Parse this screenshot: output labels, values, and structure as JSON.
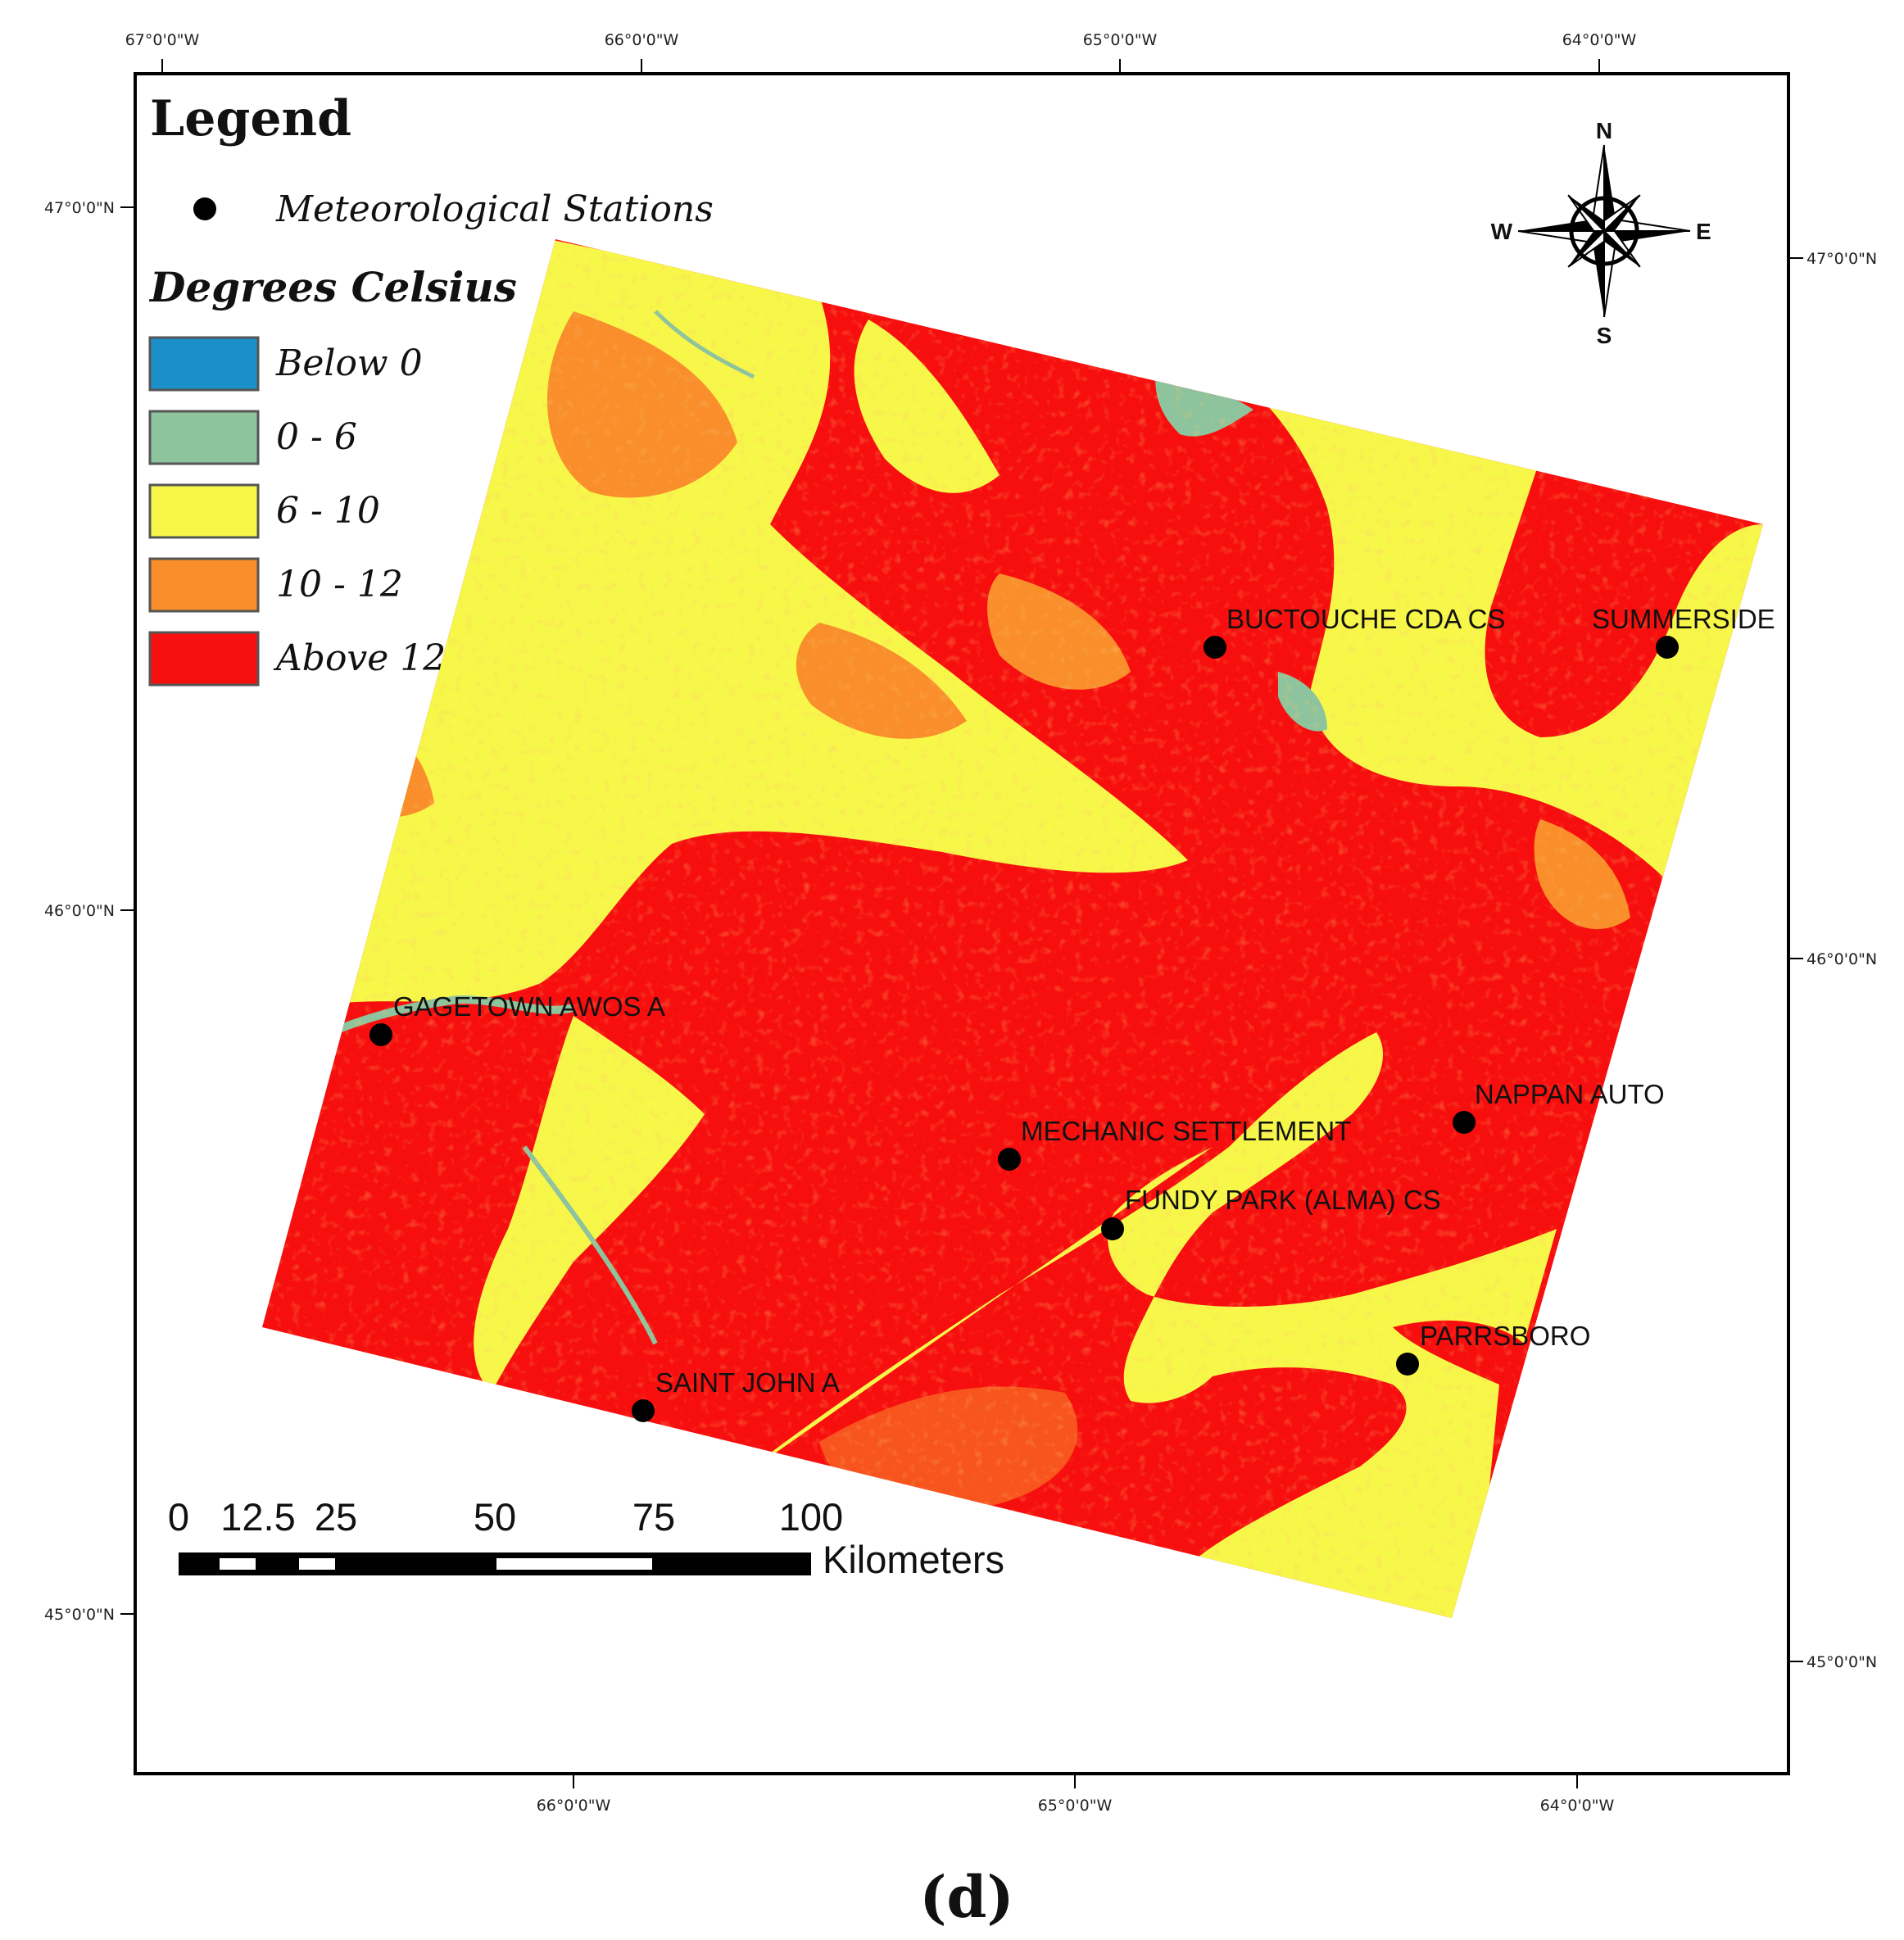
{
  "legend": {
    "title": "Legend",
    "stations_label": "Meteorological Stations",
    "subtitle": "Degrees Celsius",
    "classes": [
      {
        "label": "Below 0",
        "color": "#1a8fc8"
      },
      {
        "label": "0 - 6",
        "color": "#8dc49d"
      },
      {
        "label": "6 - 10",
        "color": "#f7f74a"
      },
      {
        "label": "10 - 12",
        "color": "#f98e2b"
      },
      {
        "label": "Above 12",
        "color": "#f70e0e"
      }
    ]
  },
  "graticule": {
    "top_lon": [
      "67°0'0\"W",
      "66°0'0\"W",
      "65°0'0\"W",
      "64°0'0\"W"
    ],
    "bottom_lon": [
      "66°0'0\"W",
      "65°0'0\"W",
      "64°0'0\"W"
    ],
    "left_lat": [
      "47°0'0\"N",
      "46°0'0\"N",
      "45°0'0\"N"
    ],
    "right_lat": [
      "47°0'0\"N",
      "46°0'0\"N",
      "45°0'0\"N"
    ]
  },
  "stations": [
    {
      "name": "BUCTOUCHE CDA CS"
    },
    {
      "name": "SUMMERSIDE"
    },
    {
      "name": "GAGETOWN AWOS A"
    },
    {
      "name": "NAPPAN AUTO"
    },
    {
      "name": "MECHANIC SETTLEMENT"
    },
    {
      "name": "FUNDY PARK (ALMA) CS"
    },
    {
      "name": "PARRSBORO"
    },
    {
      "name": "SAINT JOHN A"
    }
  ],
  "scale_bar": {
    "ticks": [
      "0",
      "12.5",
      "25",
      "50",
      "75",
      "100"
    ],
    "unit": "Kilometers"
  },
  "compass": {
    "n": "N",
    "s": "S",
    "e": "E",
    "w": "W"
  },
  "panel_label": "(d)"
}
